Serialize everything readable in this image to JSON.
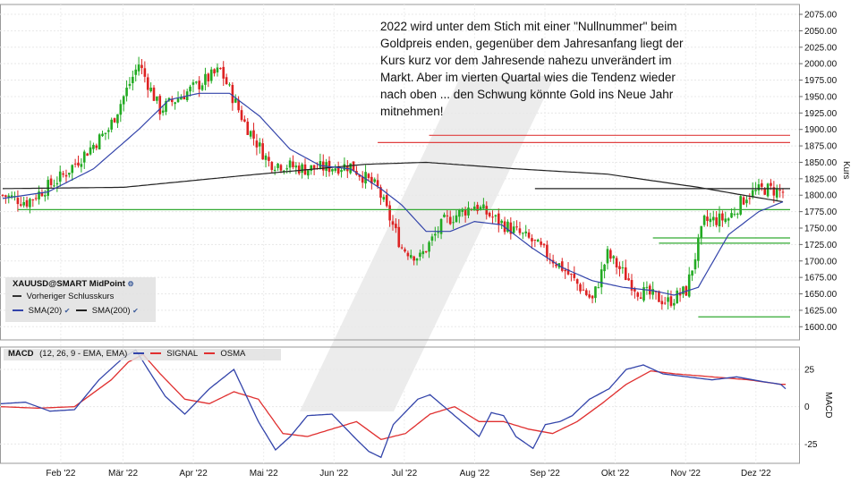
{
  "annotation": "2022 wird unter dem Stich mit einer \"Nullnummer\" beim Goldpreis enden, gegenüber dem Jahresanfang liegt der Kurs kurz vor dem Jahresende nahezu unverändert im Markt. Aber im vierten Quartal wies die Tendenz wieder nach oben ... den Schwung könnte Gold ins Neue Jahr mitnehmen!",
  "legend": {
    "title": "XAUUSD@SMART MidPoint",
    "prev_close": "Vorheriger Schlusskurs",
    "sma20": "SMA(20)",
    "sma200": "SMA(200)"
  },
  "macd_legend": {
    "label": "MACD",
    "params": "(12, 26, 9 - EMA, EMA)",
    "signal": "SIGNAL",
    "osma": "OSMA"
  },
  "chart_data": [
    {
      "type": "candlestick",
      "ylabel": "Kurs",
      "ylim": [
        1580,
        2090
      ],
      "y_ticks": [
        "2075.00",
        "2050.00",
        "2025.00",
        "2000.00",
        "1975.00",
        "1950.00",
        "1925.00",
        "1900.00",
        "1875.00",
        "1850.00",
        "1825.00",
        "1800.00",
        "1775.00",
        "1750.00",
        "1725.00",
        "1700.00",
        "1675.00",
        "1650.00",
        "1625.00",
        "1600.00"
      ],
      "x_ticks": [
        "Feb '22",
        "Mär '22",
        "Apr '22",
        "Mai '22",
        "Jun '22",
        "Jul '22",
        "Aug '22",
        "Sep '22",
        "Okt '22",
        "Nov '22",
        "Dez '22"
      ],
      "price_keypoints": [
        [
          0,
          1800
        ],
        [
          8,
          1790
        ],
        [
          20,
          1830
        ],
        [
          35,
          1900
        ],
        [
          45,
          2000
        ],
        [
          52,
          1930
        ],
        [
          62,
          1960
        ],
        [
          72,
          1990
        ],
        [
          80,
          1910
        ],
        [
          88,
          1850
        ],
        [
          100,
          1840
        ],
        [
          115,
          1845
        ],
        [
          124,
          1810
        ],
        [
          132,
          1720
        ],
        [
          138,
          1705
        ],
        [
          146,
          1760
        ],
        [
          156,
          1785
        ],
        [
          164,
          1760
        ],
        [
          175,
          1730
        ],
        [
          185,
          1690
        ],
        [
          195,
          1640
        ],
        [
          200,
          1710
        ],
        [
          210,
          1655
        ],
        [
          220,
          1638
        ],
        [
          226,
          1655
        ],
        [
          232,
          1760
        ],
        [
          240,
          1765
        ],
        [
          246,
          1800
        ],
        [
          252,
          1810
        ],
        [
          258,
          1805
        ]
      ],
      "sma20_keypoints": [
        [
          0,
          1795
        ],
        [
          15,
          1805
        ],
        [
          30,
          1840
        ],
        [
          45,
          1900
        ],
        [
          55,
          1945
        ],
        [
          65,
          1955
        ],
        [
          75,
          1955
        ],
        [
          85,
          1920
        ],
        [
          95,
          1870
        ],
        [
          105,
          1845
        ],
        [
          115,
          1840
        ],
        [
          125,
          1810
        ],
        [
          132,
          1785
        ],
        [
          140,
          1745
        ],
        [
          148,
          1745
        ],
        [
          156,
          1760
        ],
        [
          165,
          1755
        ],
        [
          175,
          1720
        ],
        [
          185,
          1690
        ],
        [
          195,
          1670
        ],
        [
          205,
          1660
        ],
        [
          215,
          1655
        ],
        [
          222,
          1648
        ],
        [
          230,
          1660
        ],
        [
          240,
          1740
        ],
        [
          250,
          1775
        ],
        [
          258,
          1790
        ]
      ],
      "sma200_keypoints": [
        [
          0,
          1810
        ],
        [
          40,
          1812
        ],
        [
          80,
          1830
        ],
        [
          120,
          1847
        ],
        [
          140,
          1850
        ],
        [
          170,
          1840
        ],
        [
          200,
          1832
        ],
        [
          230,
          1812
        ],
        [
          245,
          1800
        ],
        [
          258,
          1790
        ]
      ],
      "horizontal_lines": [
        {
          "level": 1891,
          "from": 141,
          "to": 258,
          "color": "#e04040"
        },
        {
          "level": 1880,
          "from": 124,
          "to": 258,
          "color": "#e04040"
        },
        {
          "level": 1810,
          "from": 176,
          "to": 258,
          "color": "#222222"
        },
        {
          "level": 1778,
          "from": 5,
          "to": 258,
          "color": "#33aa33"
        },
        {
          "level": 1735,
          "from": 215,
          "to": 258,
          "color": "#33aa33"
        },
        {
          "level": 1727,
          "from": 217,
          "to": 258,
          "color": "#33aa33"
        },
        {
          "level": 1615,
          "from": 230,
          "to": 258,
          "color": "#33aa33"
        }
      ],
      "series": [
        {
          "name": "SMA(20)",
          "color": "#3344aa"
        },
        {
          "name": "SMA(200)",
          "color": "#222222"
        }
      ],
      "colors": {
        "up": "#22aa22",
        "down": "#dd2222"
      }
    },
    {
      "type": "line",
      "ylabel": "MACD",
      "ylim": [
        -38,
        40
      ],
      "y_ticks": [
        "25",
        "0",
        "-25"
      ],
      "macd_keypoints": [
        [
          0,
          2
        ],
        [
          10,
          3
        ],
        [
          20,
          -3
        ],
        [
          30,
          -2
        ],
        [
          40,
          18
        ],
        [
          50,
          33
        ],
        [
          55,
          38
        ],
        [
          60,
          25
        ],
        [
          67,
          7
        ],
        [
          75,
          -5
        ],
        [
          85,
          12
        ],
        [
          95,
          25
        ],
        [
          105,
          -10
        ],
        [
          112,
          -29
        ],
        [
          118,
          -20
        ],
        [
          125,
          -6
        ],
        [
          135,
          -5
        ],
        [
          145,
          -22
        ],
        [
          150,
          -30
        ],
        [
          155,
          -34
        ],
        [
          160,
          -12
        ],
        [
          170,
          5
        ],
        [
          175,
          8
        ],
        [
          185,
          -6
        ],
        [
          195,
          -20
        ],
        [
          200,
          -4
        ],
        [
          205,
          -6
        ],
        [
          210,
          -20
        ],
        [
          217,
          -28
        ],
        [
          222,
          -12
        ],
        [
          228,
          -10
        ],
        [
          233,
          -6
        ],
        [
          240,
          5
        ],
        [
          248,
          12
        ],
        [
          255,
          25
        ],
        [
          262,
          28
        ],
        [
          270,
          22
        ],
        [
          280,
          20
        ],
        [
          290,
          18
        ],
        [
          300,
          20
        ],
        [
          310,
          17
        ],
        [
          318,
          15
        ],
        [
          320,
          12
        ]
      ],
      "signal_keypoints": [
        [
          0,
          0
        ],
        [
          15,
          -1
        ],
        [
          30,
          0
        ],
        [
          45,
          18
        ],
        [
          52,
          30
        ],
        [
          58,
          35
        ],
        [
          65,
          22
        ],
        [
          75,
          5
        ],
        [
          85,
          2
        ],
        [
          95,
          10
        ],
        [
          105,
          5
        ],
        [
          115,
          -18
        ],
        [
          125,
          -20
        ],
        [
          135,
          -15
        ],
        [
          145,
          -10
        ],
        [
          155,
          -22
        ],
        [
          165,
          -18
        ],
        [
          175,
          -5
        ],
        [
          185,
          0
        ],
        [
          195,
          -10
        ],
        [
          205,
          -10
        ],
        [
          215,
          -15
        ],
        [
          225,
          -18
        ],
        [
          235,
          -10
        ],
        [
          245,
          2
        ],
        [
          255,
          15
        ],
        [
          265,
          24
        ],
        [
          275,
          22
        ],
        [
          290,
          20
        ],
        [
          305,
          18
        ],
        [
          318,
          15
        ]
      ],
      "series": [
        {
          "name": "SIGNAL",
          "color": "#e03030"
        },
        {
          "name": "OSMA",
          "color": "#e03030"
        }
      ],
      "macd_color": "#3344aa"
    }
  ]
}
